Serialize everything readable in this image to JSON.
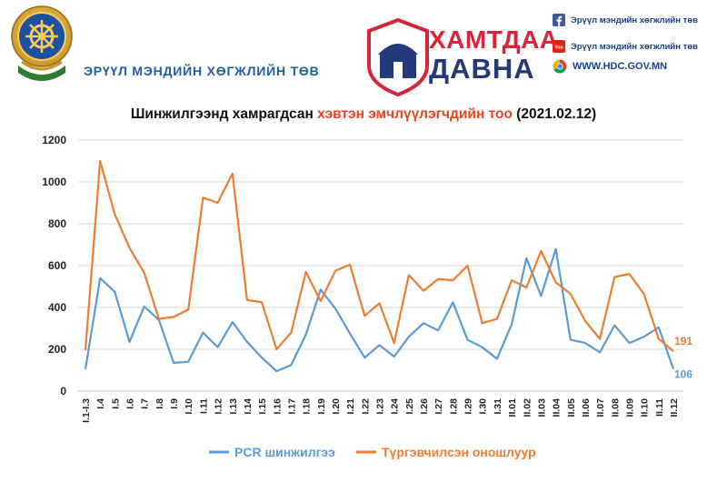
{
  "header": {
    "org_name": "ЭРҮҮЛ МЭНДИЙН ХӨГЖЛИЙН ТӨВ",
    "campaign_line1": "ХАМТДАА",
    "campaign_line2": "ДАВНА",
    "social": [
      {
        "icon": "facebook-icon",
        "text": "Эрүүл мэндийн хөгжлийн төв",
        "color": "#3b5998"
      },
      {
        "icon": "youtube-icon",
        "text": "Эрүүл мэндийн хөгжлийн төв",
        "color": "#e62117"
      },
      {
        "icon": "chrome-icon",
        "text": "WWW.HDC.GOV.MN",
        "color": "#4285f4"
      }
    ]
  },
  "chart_data": {
    "type": "line",
    "title_part1": "Шинжилгээнд хамрагдсан ",
    "title_highlight": "хэвтэн эмчлүүлэгчдийн тоо",
    "title_part2": " (2021.02.12)",
    "categories": [
      "I.1-I.3",
      "I.4",
      "I.5",
      "I.6",
      "I.7",
      "I.8",
      "I.9",
      "I.10",
      "I.11",
      "I.12",
      "I.13",
      "I.14",
      "I.15",
      "I.16",
      "I.17",
      "I.18",
      "I.19",
      "I.20",
      "I.21",
      "I.22",
      "I.23",
      "I.24",
      "I.25",
      "I.26",
      "I.27",
      "I.28",
      "I.29",
      "I.30",
      "I.31",
      "II.01",
      "II.02",
      "II.03",
      "II.04",
      "II.05",
      "II.06",
      "II.07",
      "II.08",
      "II.09",
      "II.10",
      "II.11",
      "II.12"
    ],
    "ylim": [
      0,
      1200
    ],
    "yticks": [
      "0",
      "200",
      "400",
      "600",
      "800",
      "1000",
      "1200"
    ],
    "grid": true,
    "legend_position": "bottom",
    "series": [
      {
        "name": "PCR шинжилгээ",
        "color": "#5b9bd5",
        "values": [
          105,
          540,
          475,
          235,
          405,
          340,
          135,
          140,
          280,
          210,
          330,
          235,
          160,
          95,
          125,
          270,
          485,
          395,
          275,
          160,
          220,
          165,
          260,
          325,
          290,
          425,
          245,
          210,
          155,
          320,
          635,
          455,
          680,
          245,
          230,
          185,
          315,
          230,
          260,
          305,
          106
        ]
      },
      {
        "name": "Түргэвчилсэн оношлуур",
        "color": "#ed7d31",
        "values": [
          195,
          1100,
          845,
          685,
          565,
          345,
          355,
          390,
          925,
          900,
          1040,
          435,
          425,
          200,
          280,
          570,
          430,
          575,
          605,
          360,
          420,
          230,
          555,
          480,
          535,
          530,
          600,
          325,
          345,
          530,
          495,
          670,
          520,
          465,
          335,
          250,
          545,
          560,
          465,
          250,
          191
        ]
      }
    ],
    "end_labels": [
      {
        "series": 1,
        "text": "191",
        "color": "#ed7d31"
      },
      {
        "series": 0,
        "text": "106",
        "color": "#5b9bd5"
      }
    ]
  }
}
